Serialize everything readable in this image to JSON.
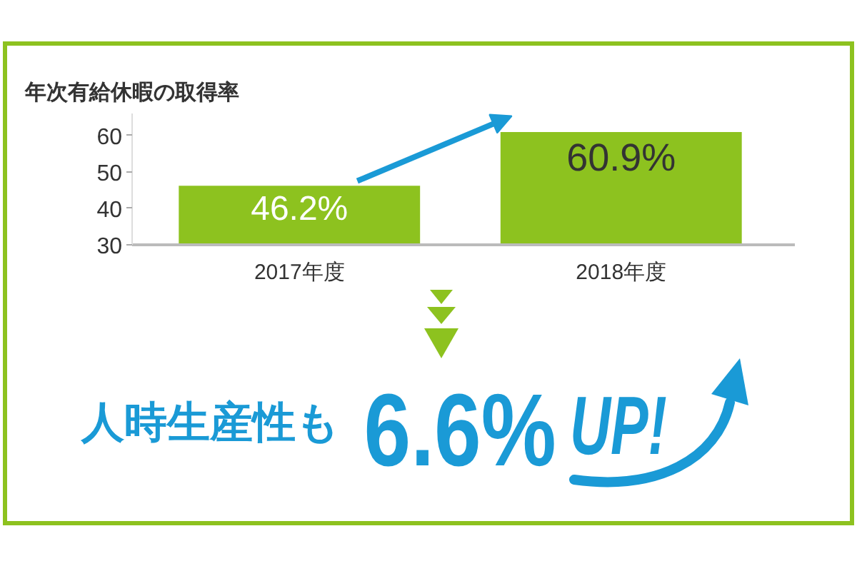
{
  "chart_data": {
    "type": "bar",
    "title": "年次有給休暇の取得率",
    "categories": [
      "2017年度",
      "2018年度"
    ],
    "values": [
      46.2,
      60.9
    ],
    "color": "#8dc21f",
    "value_labels": [
      "46.2%",
      "60.9%"
    ],
    "ylim": [
      30,
      66
    ],
    "yticks": [
      30,
      40,
      50,
      60
    ],
    "annotations": [
      "人時生産性も",
      "6.6%",
      "UP!"
    ]
  }
}
